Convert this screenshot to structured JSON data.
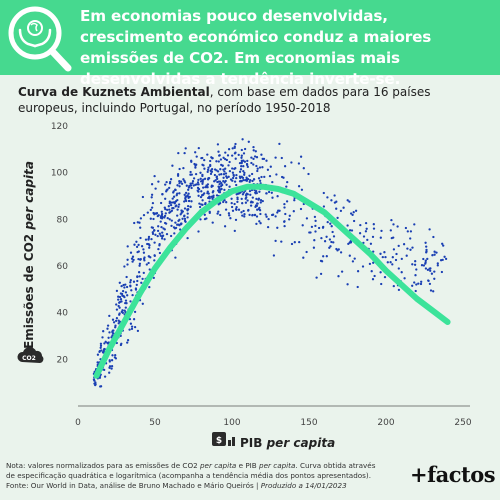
{
  "headline": "Em economias pouco desenvolvidas, crescimento económico conduz a maiores emissões de CO2. Em economias mais desenvolvidas a tendência inverte-se.",
  "subtitle": {
    "bold": "Curva de Kuznets Ambiental",
    "rest": ", com base em dados para 16 países europeus, incluindo Portugal, no período 1950-2018"
  },
  "footer": {
    "line1_a": "Nota: valores normalizados para as emissões de CO2 ",
    "line1_i1": "per capita",
    "line1_b": " e PIB ",
    "line1_i2": "per capita",
    "line1_c": ". Curva obtida através",
    "line2": "de especificação quadrática e logarítmica (acompanha a tendência média dos pontos apresentados).",
    "line3_a": "Fonte: Our World in Data, análise de Bruno Machado e Mário Queirós | ",
    "line3_i": "Produzido a 14/01/2023"
  },
  "brand": "+factos",
  "colors": {
    "banner": "#46d98f",
    "points": "#1a3fb3",
    "curve": "#3ce39a",
    "background": "#eaf3ec"
  },
  "icons": {
    "logo": "globe-hands-magnifier-icon",
    "co2": "co2-cloud-icon",
    "pib": "money-chart-icon"
  },
  "chart_data": {
    "type": "scatter",
    "xlabel_main": "PIB",
    "xlabel_italic": "per capita",
    "ylabel_main": "Emissões de CO2",
    "ylabel_italic": "per capita",
    "xlim": [
      0,
      250
    ],
    "ylim": [
      0,
      120
    ],
    "xticks": [
      "0",
      "50",
      "100",
      "150",
      "200",
      "250"
    ],
    "yticks": [
      "20",
      "40",
      "60",
      "80",
      "100",
      "120"
    ],
    "grid": false,
    "points_description_count": 1100,
    "cloud": [
      [
        10,
        12,
        3
      ],
      [
        15,
        18,
        5
      ],
      [
        20,
        24,
        7
      ],
      [
        25,
        33,
        9
      ],
      [
        30,
        42,
        11
      ],
      [
        35,
        52,
        12
      ],
      [
        40,
        62,
        12
      ],
      [
        45,
        70,
        12
      ],
      [
        50,
        76,
        11
      ],
      [
        60,
        85,
        10
      ],
      [
        70,
        90,
        9
      ],
      [
        80,
        94,
        8
      ],
      [
        90,
        96,
        8
      ],
      [
        100,
        97,
        9
      ],
      [
        110,
        95,
        10
      ],
      [
        120,
        92,
        11
      ],
      [
        130,
        88,
        12
      ],
      [
        140,
        84,
        12
      ],
      [
        150,
        80,
        12
      ],
      [
        160,
        77,
        12
      ],
      [
        170,
        74,
        11
      ],
      [
        180,
        71,
        10
      ],
      [
        190,
        68,
        10
      ],
      [
        200,
        66,
        9
      ],
      [
        210,
        64,
        9
      ],
      [
        220,
        62,
        8
      ],
      [
        230,
        60,
        8
      ],
      [
        240,
        62,
        4
      ]
    ],
    "fit_curve": {
      "name": "",
      "x": [
        12,
        20,
        30,
        40,
        50,
        60,
        70,
        80,
        90,
        100,
        110,
        120,
        130,
        140,
        150,
        160,
        170,
        180,
        190,
        200,
        210,
        220,
        230,
        240
      ],
      "y": [
        13,
        24,
        36,
        48,
        59,
        68,
        76,
        83,
        88,
        92,
        94,
        94,
        93,
        91,
        87,
        83,
        77,
        71,
        65,
        58,
        52,
        46,
        41,
        36
      ]
    }
  }
}
